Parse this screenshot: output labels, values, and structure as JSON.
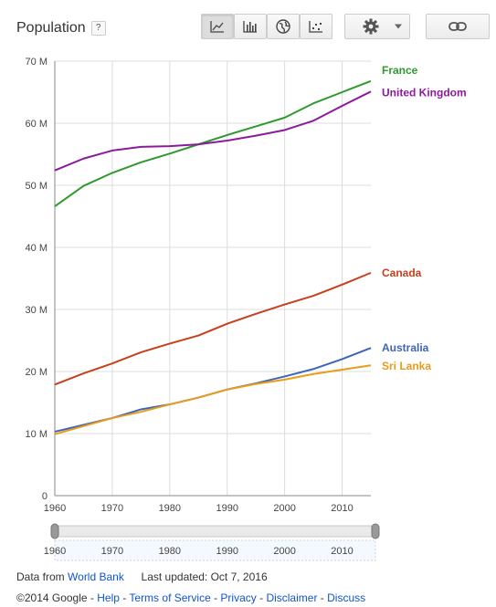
{
  "header": {
    "title": "Population",
    "help_label": "?"
  },
  "toolbar": {
    "buttons": [
      {
        "name": "line-chart-button",
        "icon": "line-chart-icon",
        "active": true
      },
      {
        "name": "bar-chart-button",
        "icon": "bar-chart-icon",
        "active": false
      },
      {
        "name": "map-button",
        "icon": "globe-icon",
        "active": false
      },
      {
        "name": "scatter-button",
        "icon": "scatter-icon",
        "active": false
      }
    ],
    "settings_icon": "gear-icon",
    "link_icon": "link-icon"
  },
  "chart_data": {
    "type": "line",
    "title": "Population",
    "x": [
      1960,
      1965,
      1970,
      1975,
      1980,
      1985,
      1990,
      1995,
      2000,
      2005,
      2010,
      2015
    ],
    "xticks": [
      "1960",
      "1970",
      "1980",
      "1990",
      "2000",
      "2010"
    ],
    "yticks": [
      "0",
      "10 M",
      "20 M",
      "30 M",
      "40 M",
      "50 M",
      "60 M",
      "70 M"
    ],
    "xlim": [
      1960,
      2015
    ],
    "ylim": [
      0,
      70
    ],
    "grid": true,
    "series": [
      {
        "name": "France",
        "color": "#2e9a2e",
        "values": [
          46.6,
          49.9,
          52.0,
          53.7,
          55.1,
          56.6,
          58.1,
          59.5,
          60.9,
          63.2,
          65.0,
          66.8
        ]
      },
      {
        "name": "United Kingdom",
        "color": "#8b1a9c",
        "values": [
          52.4,
          54.3,
          55.6,
          56.2,
          56.3,
          56.6,
          57.2,
          58.0,
          58.9,
          60.4,
          62.8,
          65.1
        ]
      },
      {
        "name": "Canada",
        "color": "#c8401a",
        "values": [
          17.9,
          19.7,
          21.3,
          23.1,
          24.5,
          25.8,
          27.7,
          29.3,
          30.8,
          32.2,
          34.0,
          35.9
        ]
      },
      {
        "name": "Australia",
        "color": "#3d66b8",
        "values": [
          10.3,
          11.4,
          12.5,
          13.9,
          14.7,
          15.8,
          17.1,
          18.1,
          19.2,
          20.4,
          22.0,
          23.8
        ]
      },
      {
        "name": "Sri Lanka",
        "color": "#e89c1a",
        "values": [
          9.9,
          11.2,
          12.5,
          13.5,
          14.7,
          15.8,
          17.1,
          18.0,
          18.7,
          19.6,
          20.3,
          21.0
        ]
      }
    ]
  },
  "range_slider": {
    "ticks": [
      "1960",
      "1970",
      "1980",
      "1990",
      "2000",
      "2010"
    ]
  },
  "footer": {
    "data_from": "Data from",
    "source_link": "World Bank",
    "last_updated": "Last updated: Oct 7, 2016",
    "copyright": "©2014 Google -",
    "links": [
      "Help",
      "Terms of Service",
      "Privacy",
      "Disclaimer",
      "Discuss"
    ],
    "sep": " - "
  }
}
